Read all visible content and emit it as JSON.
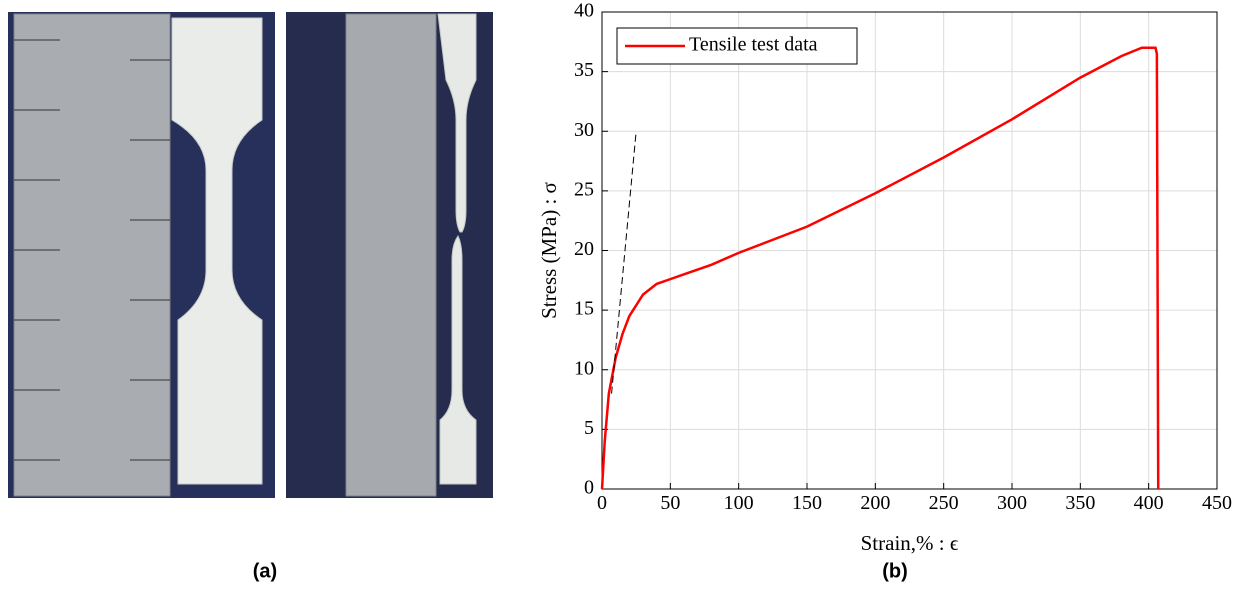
{
  "panel_labels": [
    "(a)",
    "(b)"
  ],
  "chart_data": {
    "type": "line",
    "xlabel": "Strain,% : ϵ",
    "ylabel": "Stress (MPa) : σ",
    "xlim": [
      0,
      450
    ],
    "ylim": [
      0,
      40
    ],
    "xticks": [
      0,
      50,
      100,
      150,
      200,
      250,
      300,
      350,
      400,
      450
    ],
    "yticks": [
      0,
      5,
      10,
      15,
      20,
      25,
      30,
      35,
      40
    ],
    "grid": true,
    "legend": "upper-left",
    "series": [
      {
        "name": "Tensile test data",
        "color": "#ff0000",
        "style": "solid",
        "x": [
          0,
          2,
          5,
          10,
          15,
          20,
          30,
          40,
          50,
          60,
          80,
          100,
          150,
          200,
          250,
          300,
          350,
          380,
          395,
          405,
          406,
          407
        ],
        "values": [
          0,
          4,
          8,
          11,
          13,
          14.5,
          16.3,
          17.2,
          17.6,
          18,
          18.8,
          19.8,
          22,
          24.8,
          27.8,
          31,
          34.5,
          36.3,
          37,
          37,
          36.5,
          0
        ]
      },
      {
        "color": "#000000",
        "style": "dashed",
        "x": [
          7,
          25
        ],
        "values": [
          8,
          30
        ]
      }
    ]
  }
}
